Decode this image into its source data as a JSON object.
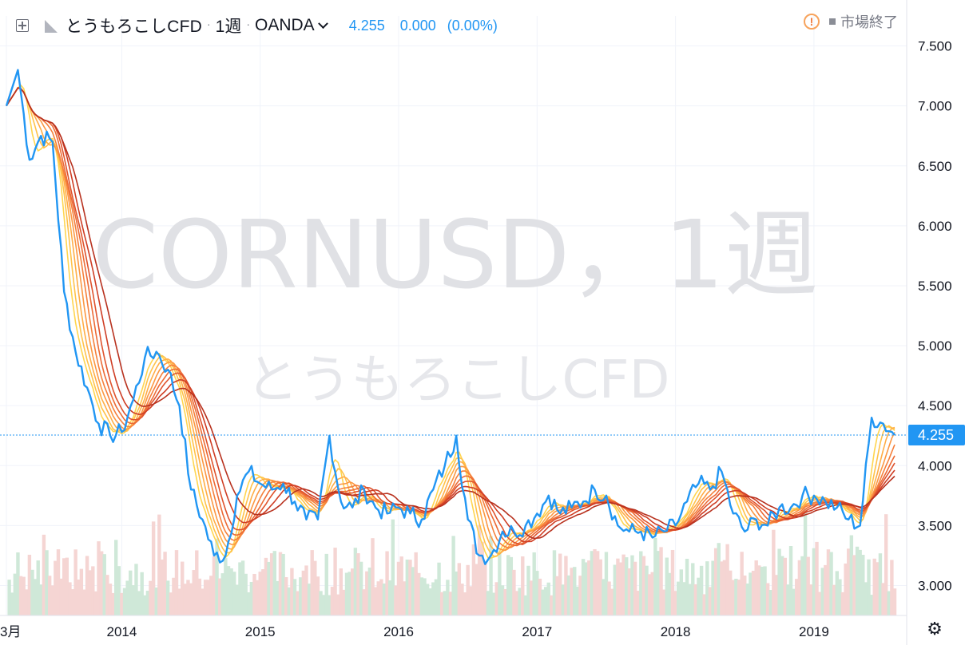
{
  "header": {
    "symbol": "とうもろこしCFD",
    "separator": "·",
    "interval": "1週",
    "broker": "OANDA",
    "last_price": "4.255",
    "change": "0.000",
    "change_pct": "(0.00%)"
  },
  "status": {
    "label": "市場終了"
  },
  "watermark": {
    "line1": "CORNUSD，1週",
    "line2": "とうもろこしCFD"
  },
  "price_label": "4.255",
  "colors": {
    "price_line": "#2196f3",
    "ribbon": [
      "#ffd54f",
      "#ffc24a",
      "#ffad46",
      "#fb9742",
      "#f5803c",
      "#ec6a35",
      "#df532d",
      "#cf3e25",
      "#b8321f"
    ],
    "volume_up": "#cfe8d8",
    "volume_down": "#f5d5d3",
    "grid": "#f0f3fa",
    "axis_text": "#131722",
    "price_label_bg": "#2196f3"
  },
  "chart_data": {
    "type": "line",
    "x_axis": {
      "tick_labels": [
        "3月",
        "2014",
        "2015",
        "2016",
        "2017",
        "2018",
        "2019"
      ],
      "range": [
        "2013-03",
        "2019-08"
      ]
    },
    "y_axis": {
      "tick_labels": [
        "3.000",
        "3.500",
        "4.000",
        "4.500",
        "5.000",
        "5.500",
        "6.000",
        "6.500",
        "7.000",
        "7.500"
      ],
      "ylim": [
        2.75,
        7.75
      ]
    },
    "current_price": 4.255,
    "price_series": [
      [
        "2013-03",
        7.0
      ],
      [
        "2013-04",
        7.3
      ],
      [
        "2013-05",
        6.55
      ],
      [
        "2013-06",
        6.75
      ],
      [
        "2013-07",
        6.7
      ],
      [
        "2013-08",
        5.45
      ],
      [
        "2013-09",
        4.95
      ],
      [
        "2013-10",
        4.65
      ],
      [
        "2013-11",
        4.35
      ],
      [
        "2013-12",
        4.25
      ],
      [
        "2014-01",
        4.28
      ],
      [
        "2014-02",
        4.55
      ],
      [
        "2014-03",
        4.9
      ],
      [
        "2014-04",
        4.95
      ],
      [
        "2014-05",
        4.8
      ],
      [
        "2014-06",
        4.5
      ],
      [
        "2014-07",
        3.8
      ],
      [
        "2014-08",
        3.55
      ],
      [
        "2014-09",
        3.25
      ],
      [
        "2014-10",
        3.25
      ],
      [
        "2014-11",
        3.75
      ],
      [
        "2014-12",
        3.95
      ],
      [
        "2015-01",
        3.85
      ],
      [
        "2015-02",
        3.8
      ],
      [
        "2015-03",
        3.85
      ],
      [
        "2015-04",
        3.7
      ],
      [
        "2015-05",
        3.55
      ],
      [
        "2015-06",
        3.55
      ],
      [
        "2015-07",
        4.25
      ],
      [
        "2015-08",
        3.7
      ],
      [
        "2015-09",
        3.65
      ],
      [
        "2015-10",
        3.8
      ],
      [
        "2015-11",
        3.65
      ],
      [
        "2015-12",
        3.6
      ],
      [
        "2016-01",
        3.65
      ],
      [
        "2016-02",
        3.6
      ],
      [
        "2016-03",
        3.55
      ],
      [
        "2016-04",
        3.8
      ],
      [
        "2016-05",
        4.0
      ],
      [
        "2016-06",
        4.25
      ],
      [
        "2016-07",
        3.55
      ],
      [
        "2016-08",
        3.25
      ],
      [
        "2016-09",
        3.25
      ],
      [
        "2016-10",
        3.45
      ],
      [
        "2016-11",
        3.45
      ],
      [
        "2016-12",
        3.5
      ],
      [
        "2017-01",
        3.6
      ],
      [
        "2017-02",
        3.75
      ],
      [
        "2017-03",
        3.6
      ],
      [
        "2017-04",
        3.65
      ],
      [
        "2017-05",
        3.7
      ],
      [
        "2017-06",
        3.8
      ],
      [
        "2017-07",
        3.75
      ],
      [
        "2017-08",
        3.5
      ],
      [
        "2017-09",
        3.45
      ],
      [
        "2017-10",
        3.45
      ],
      [
        "2017-11",
        3.4
      ],
      [
        "2017-12",
        3.45
      ],
      [
        "2018-01",
        3.5
      ],
      [
        "2018-02",
        3.7
      ],
      [
        "2018-03",
        3.85
      ],
      [
        "2018-04",
        3.8
      ],
      [
        "2018-05",
        3.95
      ],
      [
        "2018-06",
        3.6
      ],
      [
        "2018-07",
        3.45
      ],
      [
        "2018-08",
        3.55
      ],
      [
        "2018-09",
        3.5
      ],
      [
        "2018-10",
        3.65
      ],
      [
        "2018-11",
        3.65
      ],
      [
        "2018-12",
        3.75
      ],
      [
        "2019-01",
        3.75
      ],
      [
        "2019-02",
        3.7
      ],
      [
        "2019-03",
        3.65
      ],
      [
        "2019-04",
        3.55
      ],
      [
        "2019-05",
        3.5
      ],
      [
        "2019-06",
        4.4
      ],
      [
        "2019-07",
        4.35
      ],
      [
        "2019-08",
        4.255
      ]
    ],
    "ribbon_note": "9 moving-average lines (yellow to dark red)",
    "volume": "histogram at bottom, green up weeks / red down weeks"
  }
}
